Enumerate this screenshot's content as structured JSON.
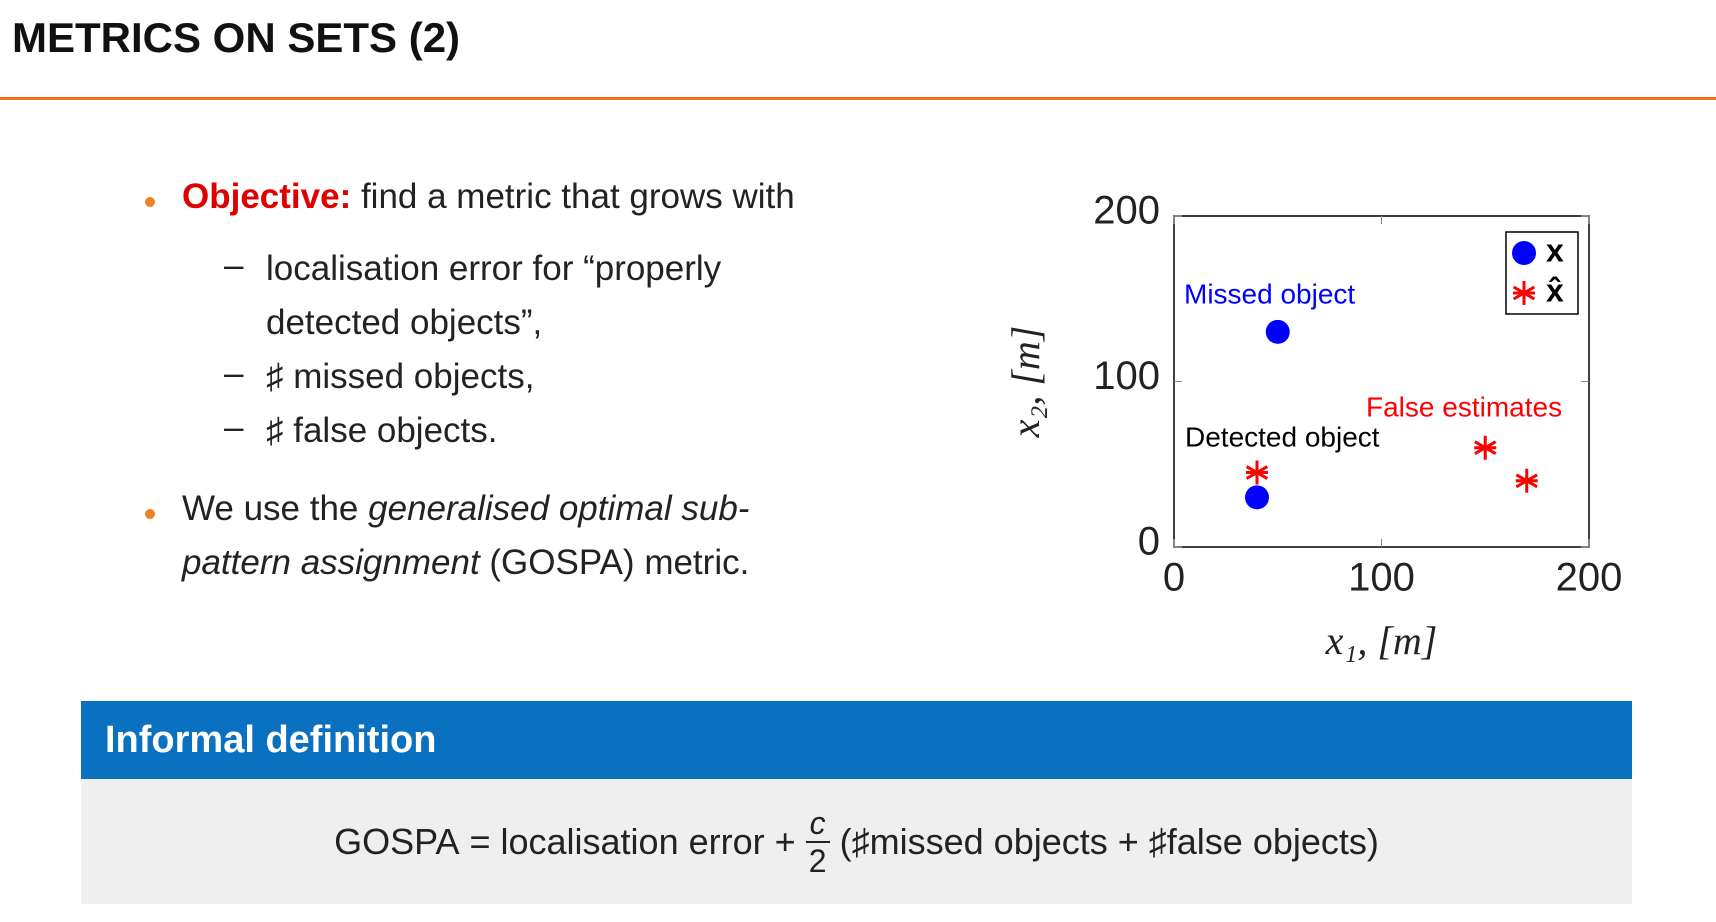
{
  "header": {
    "title": "METRICS ON SETS (2)"
  },
  "bullets": [
    {
      "lead": "Objective:",
      "text": " find a metric that grows with",
      "subitems": [
        "localisation error for “properly detected objects”,",
        "♯ missed objects,",
        "♯ false objects."
      ]
    },
    {
      "before": "We use the ",
      "emphasis": "generalised optimal sub-pattern assignment",
      "after": " (GOSPA) metric."
    }
  ],
  "chart_data": {
    "type": "scatter",
    "x_label": "x₁, [m]",
    "y_label": "x₂, [m]",
    "xlim": [
      0,
      200
    ],
    "ylim": [
      0,
      200
    ],
    "xticks": [
      0,
      100,
      200
    ],
    "yticks": [
      0,
      100,
      200
    ],
    "legend": "upper right",
    "series": [
      {
        "name": "x",
        "color": "#0000ff",
        "marker": "circle",
        "x": [
          50,
          40
        ],
        "values": [
          130,
          30
        ]
      },
      {
        "name": "x̂",
        "color": "#ff0000",
        "marker": "star",
        "x": [
          40,
          150,
          170
        ],
        "values": [
          45,
          60,
          40
        ]
      }
    ],
    "annotations": [
      {
        "text": "Missed object",
        "color": "#0000ff"
      },
      {
        "text": "Detected object",
        "color": "#000000"
      },
      {
        "text": "False estimates",
        "color": "#ff0000"
      }
    ]
  },
  "definition": {
    "title": "Informal definition",
    "formula": {
      "lhs": "GOSPA",
      "eq": "=",
      "term1": "localisation error",
      "plus1": "+",
      "num": "c",
      "den": "2",
      "term2": "(♯missed objects",
      "plus2": "+",
      "term3": "♯false objects)"
    }
  }
}
